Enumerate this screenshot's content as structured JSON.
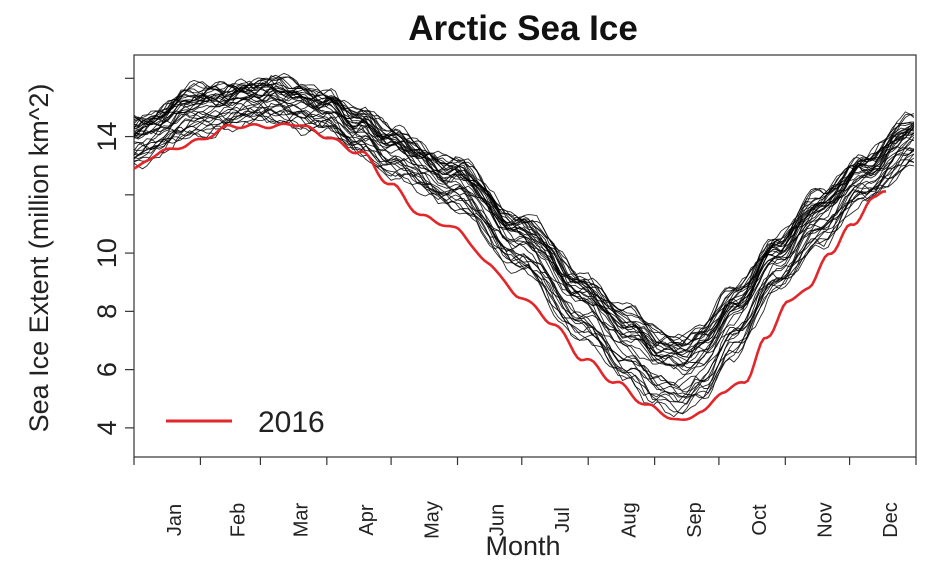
{
  "chart_data": {
    "type": "line",
    "title": "Arctic Sea Ice",
    "xlabel": "Month",
    "ylabel": "Sea Ice Extent (million km^2)",
    "x_ticks": [
      "Jan",
      "Feb",
      "Mar",
      "Apr",
      "May",
      "Jun",
      "Jul",
      "Aug",
      "Sep",
      "Oct",
      "Nov",
      "Dec"
    ],
    "y_ticks": [
      4,
      6,
      8,
      10,
      14
    ],
    "xlim": [
      0,
      365
    ],
    "ylim": [
      3,
      16.8
    ],
    "grid": false,
    "legend": {
      "position": "bottom-left",
      "entries": [
        {
          "label": "2016",
          "color": "#e3262a"
        }
      ]
    },
    "highlight_series": {
      "name": "2016",
      "color": "#e3262a",
      "day_of_year": [
        0,
        15,
        30,
        45,
        60,
        75,
        90,
        105,
        120,
        135,
        150,
        165,
        180,
        195,
        210,
        225,
        240,
        255,
        265,
        275,
        285,
        295,
        305,
        315,
        325,
        335,
        345,
        351
      ],
      "extent": [
        12.9,
        13.5,
        13.9,
        14.3,
        14.4,
        14.4,
        14.0,
        13.5,
        12.3,
        11.3,
        10.8,
        9.7,
        8.5,
        7.6,
        6.4,
        5.5,
        4.8,
        4.2,
        4.5,
        5.3,
        5.6,
        7.0,
        8.3,
        8.9,
        10.0,
        10.9,
        11.9,
        12.2
      ]
    },
    "background_series": {
      "description_count": 37,
      "color": "#000000",
      "day_of_year": [
        0,
        30,
        60,
        90,
        105,
        120,
        150,
        180,
        210,
        230,
        245,
        255,
        265,
        280,
        300,
        320,
        340,
        365
      ],
      "mean_extent": [
        13.9,
        14.9,
        15.3,
        14.9,
        14.2,
        13.5,
        12.4,
        10.4,
        8.2,
        6.9,
        6.1,
        5.9,
        6.3,
        7.7,
        9.7,
        11.2,
        12.6,
        13.9
      ],
      "spread": [
        0.9,
        0.9,
        0.8,
        0.8,
        0.8,
        0.9,
        0.9,
        1.1,
        1.3,
        1.4,
        1.5,
        1.6,
        1.5,
        1.3,
        1.1,
        1.0,
        0.9,
        0.9
      ]
    }
  }
}
